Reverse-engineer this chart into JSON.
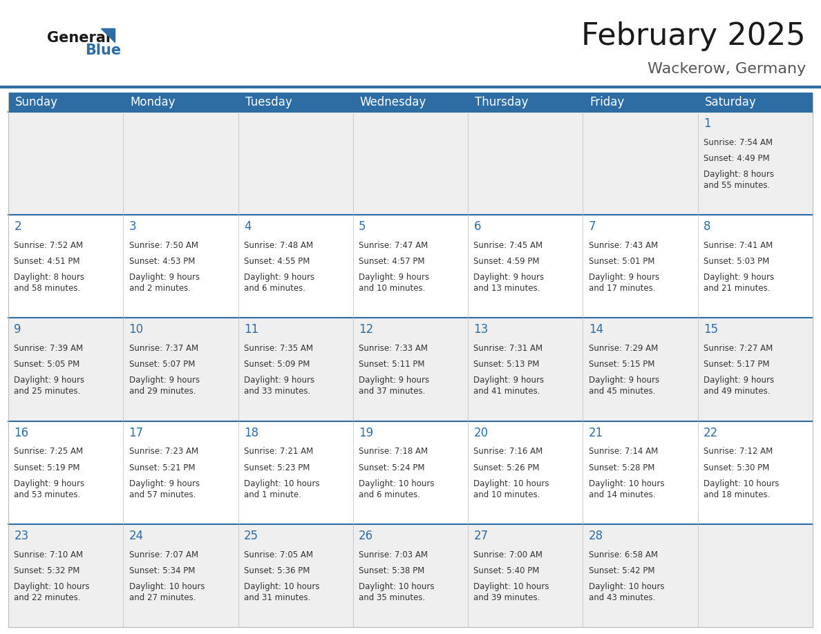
{
  "title": "February 2025",
  "subtitle": "Wackerow, Germany",
  "header_bg": "#2E6DA4",
  "header_text_color": "#FFFFFF",
  "cell_bg_light": "#EFEFEF",
  "cell_bg_white": "#FFFFFF",
  "text_color": "#333333",
  "day_number_color": "#2E6DA4",
  "border_color": "#BBBBBB",
  "line_color": "#2E6DA4",
  "days_of_week": [
    "Sunday",
    "Monday",
    "Tuesday",
    "Wednesday",
    "Thursday",
    "Friday",
    "Saturday"
  ],
  "title_fontsize": 32,
  "subtitle_fontsize": 16,
  "header_fontsize": 12,
  "day_num_fontsize": 12,
  "cell_text_fontsize": 8.5,
  "calendar": [
    [
      null,
      null,
      null,
      null,
      null,
      null,
      {
        "day": 1,
        "sunrise": "7:54 AM",
        "sunset": "4:49 PM",
        "daylight": "8 hours\nand 55 minutes."
      }
    ],
    [
      {
        "day": 2,
        "sunrise": "7:52 AM",
        "sunset": "4:51 PM",
        "daylight": "8 hours\nand 58 minutes."
      },
      {
        "day": 3,
        "sunrise": "7:50 AM",
        "sunset": "4:53 PM",
        "daylight": "9 hours\nand 2 minutes."
      },
      {
        "day": 4,
        "sunrise": "7:48 AM",
        "sunset": "4:55 PM",
        "daylight": "9 hours\nand 6 minutes."
      },
      {
        "day": 5,
        "sunrise": "7:47 AM",
        "sunset": "4:57 PM",
        "daylight": "9 hours\nand 10 minutes."
      },
      {
        "day": 6,
        "sunrise": "7:45 AM",
        "sunset": "4:59 PM",
        "daylight": "9 hours\nand 13 minutes."
      },
      {
        "day": 7,
        "sunrise": "7:43 AM",
        "sunset": "5:01 PM",
        "daylight": "9 hours\nand 17 minutes."
      },
      {
        "day": 8,
        "sunrise": "7:41 AM",
        "sunset": "5:03 PM",
        "daylight": "9 hours\nand 21 minutes."
      }
    ],
    [
      {
        "day": 9,
        "sunrise": "7:39 AM",
        "sunset": "5:05 PM",
        "daylight": "9 hours\nand 25 minutes."
      },
      {
        "day": 10,
        "sunrise": "7:37 AM",
        "sunset": "5:07 PM",
        "daylight": "9 hours\nand 29 minutes."
      },
      {
        "day": 11,
        "sunrise": "7:35 AM",
        "sunset": "5:09 PM",
        "daylight": "9 hours\nand 33 minutes."
      },
      {
        "day": 12,
        "sunrise": "7:33 AM",
        "sunset": "5:11 PM",
        "daylight": "9 hours\nand 37 minutes."
      },
      {
        "day": 13,
        "sunrise": "7:31 AM",
        "sunset": "5:13 PM",
        "daylight": "9 hours\nand 41 minutes."
      },
      {
        "day": 14,
        "sunrise": "7:29 AM",
        "sunset": "5:15 PM",
        "daylight": "9 hours\nand 45 minutes."
      },
      {
        "day": 15,
        "sunrise": "7:27 AM",
        "sunset": "5:17 PM",
        "daylight": "9 hours\nand 49 minutes."
      }
    ],
    [
      {
        "day": 16,
        "sunrise": "7:25 AM",
        "sunset": "5:19 PM",
        "daylight": "9 hours\nand 53 minutes."
      },
      {
        "day": 17,
        "sunrise": "7:23 AM",
        "sunset": "5:21 PM",
        "daylight": "9 hours\nand 57 minutes."
      },
      {
        "day": 18,
        "sunrise": "7:21 AM",
        "sunset": "5:23 PM",
        "daylight": "10 hours\nand 1 minute."
      },
      {
        "day": 19,
        "sunrise": "7:18 AM",
        "sunset": "5:24 PM",
        "daylight": "10 hours\nand 6 minutes."
      },
      {
        "day": 20,
        "sunrise": "7:16 AM",
        "sunset": "5:26 PM",
        "daylight": "10 hours\nand 10 minutes."
      },
      {
        "day": 21,
        "sunrise": "7:14 AM",
        "sunset": "5:28 PM",
        "daylight": "10 hours\nand 14 minutes."
      },
      {
        "day": 22,
        "sunrise": "7:12 AM",
        "sunset": "5:30 PM",
        "daylight": "10 hours\nand 18 minutes."
      }
    ],
    [
      {
        "day": 23,
        "sunrise": "7:10 AM",
        "sunset": "5:32 PM",
        "daylight": "10 hours\nand 22 minutes."
      },
      {
        "day": 24,
        "sunrise": "7:07 AM",
        "sunset": "5:34 PM",
        "daylight": "10 hours\nand 27 minutes."
      },
      {
        "day": 25,
        "sunrise": "7:05 AM",
        "sunset": "5:36 PM",
        "daylight": "10 hours\nand 31 minutes."
      },
      {
        "day": 26,
        "sunrise": "7:03 AM",
        "sunset": "5:38 PM",
        "daylight": "10 hours\nand 35 minutes."
      },
      {
        "day": 27,
        "sunrise": "7:00 AM",
        "sunset": "5:40 PM",
        "daylight": "10 hours\nand 39 minutes."
      },
      {
        "day": 28,
        "sunrise": "6:58 AM",
        "sunset": "5:42 PM",
        "daylight": "10 hours\nand 43 minutes."
      },
      null
    ]
  ]
}
